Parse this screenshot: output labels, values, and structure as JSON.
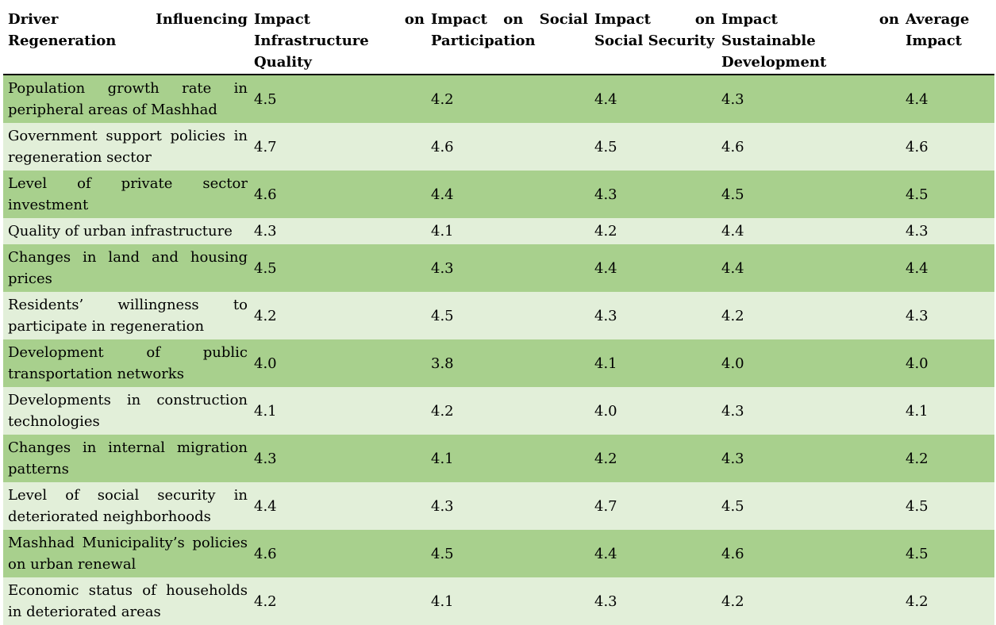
{
  "table": {
    "headers": [
      "Driver Influencing Regeneration",
      "Impact on Infrastructure Quality",
      "Impact on Social Participation",
      "Impact on Social Security",
      "Impact on Sustainable Development",
      "Average Impact"
    ],
    "rows": [
      [
        "Population growth rate in peripheral areas of Mashhad",
        "4.5",
        "4.2",
        "4.4",
        "4.3",
        "4.4"
      ],
      [
        "Government support policies in regeneration sector",
        "4.7",
        "4.6",
        "4.5",
        "4.6",
        "4.6"
      ],
      [
        "Level of private sector investment",
        "4.6",
        "4.4",
        "4.3",
        "4.5",
        "4.5"
      ],
      [
        "Quality of urban infrastructure",
        "4.3",
        "4.1",
        "4.2",
        "4.4",
        "4.3"
      ],
      [
        "Changes in land and housing prices",
        "4.5",
        "4.3",
        "4.4",
        "4.4",
        "4.4"
      ],
      [
        "Residents’ willingness to participate in regeneration",
        "4.2",
        "4.5",
        "4.3",
        "4.2",
        "4.3"
      ],
      [
        "Development of public transportation networks",
        "4.0",
        "3.8",
        "4.1",
        "4.0",
        "4.0"
      ],
      [
        "Developments in construction technologies",
        "4.1",
        "4.2",
        "4.0",
        "4.3",
        "4.1"
      ],
      [
        "Changes in internal migration patterns",
        "4.3",
        "4.1",
        "4.2",
        "4.3",
        "4.2"
      ],
      [
        "Level of social security in deteriorated neighborhoods",
        "4.4",
        "4.3",
        "4.7",
        "4.5",
        "4.5"
      ],
      [
        "Mashhad Municipality’s policies on urban renewal",
        "4.6",
        "4.5",
        "4.4",
        "4.6",
        "4.5"
      ],
      [
        "Economic status of households in deteriorated areas",
        "4.2",
        "4.1",
        "4.3",
        "4.2",
        "4.2"
      ]
    ]
  },
  "colors": {
    "row_dark": "#a8d08d",
    "row_light": "#e2efd9"
  }
}
